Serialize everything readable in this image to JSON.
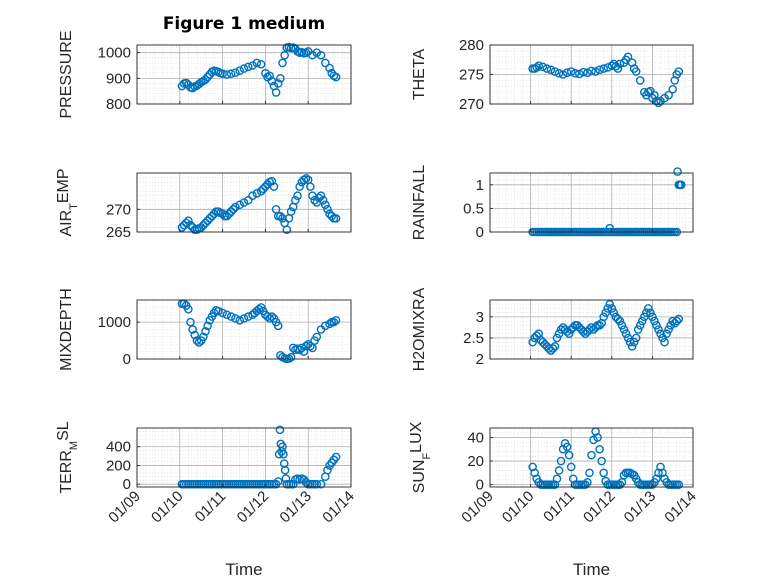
{
  "figure": {
    "title": "Figure 1 medium"
  },
  "colors": {
    "marker": "#0072BD",
    "axis": "#262626",
    "grid": "#b0b0b0",
    "minor_grid": "#d8d8d8"
  },
  "chart_data": [
    {
      "type": "scatter",
      "id": "pressure",
      "title": "Figure 1 medium",
      "ylabel": {
        "main": "PRESSURE",
        "sub": ""
      },
      "xlabel": "",
      "ylim": [
        800,
        1030
      ],
      "yticks": [
        {
          "v": 800,
          "label": "800"
        },
        {
          "v": 900,
          "label": "900"
        },
        {
          "v": 1000,
          "label": "1000"
        }
      ],
      "x": [
        10.05,
        10.1,
        10.15,
        10.2,
        10.25,
        10.3,
        10.35,
        10.4,
        10.45,
        10.5,
        10.55,
        10.6,
        10.65,
        10.7,
        10.75,
        10.8,
        10.85,
        10.9,
        10.95,
        11.0,
        11.1,
        11.2,
        11.3,
        11.4,
        11.5,
        11.6,
        11.7,
        11.8,
        11.9,
        12.0,
        12.05,
        12.1,
        12.15,
        12.2,
        12.25,
        12.3,
        12.35,
        12.4,
        12.45,
        12.5,
        12.55,
        12.6,
        12.65,
        12.7,
        12.75,
        12.8,
        12.85,
        12.9,
        12.95,
        13.0,
        13.1,
        13.2,
        13.3,
        13.4,
        13.5,
        13.55,
        13.6,
        13.65
      ],
      "y": [
        870,
        880,
        882,
        875,
        865,
        862,
        868,
        872,
        878,
        885,
        890,
        895,
        905,
        915,
        925,
        930,
        928,
        925,
        920,
        918,
        915,
        918,
        922,
        930,
        938,
        945,
        950,
        960,
        955,
        920,
        905,
        910,
        890,
        870,
        845,
        880,
        900,
        960,
        990,
        1020,
        1022,
        1018,
        1020,
        1015,
        1005,
        1000,
        1002,
        998,
        1000,
        1005,
        990,
        1000,
        990,
        960,
        940,
        920,
        910,
        905
      ],
      "grid": true,
      "minor_grid": true
    },
    {
      "type": "scatter",
      "id": "theta",
      "ylabel": {
        "main": "THETA",
        "sub": ""
      },
      "xlabel": "",
      "ylim": [
        270,
        280
      ],
      "yticks": [
        {
          "v": 270,
          "label": "270"
        },
        {
          "v": 275,
          "label": "275"
        },
        {
          "v": 280,
          "label": "280"
        }
      ],
      "x": [
        10.05,
        10.1,
        10.15,
        10.2,
        10.3,
        10.4,
        10.5,
        10.6,
        10.7,
        10.8,
        10.9,
        11.0,
        11.1,
        11.2,
        11.3,
        11.4,
        11.5,
        11.6,
        11.7,
        11.8,
        11.9,
        12.0,
        12.05,
        12.1,
        12.15,
        12.2,
        12.3,
        12.35,
        12.4,
        12.5,
        12.55,
        12.6,
        12.7,
        12.8,
        12.85,
        12.9,
        12.95,
        13.0,
        13.05,
        13.1,
        13.15,
        13.2,
        13.3,
        13.4,
        13.5,
        13.55,
        13.6,
        13.65
      ],
      "y": [
        276,
        276,
        276.2,
        276.5,
        276.3,
        276,
        275.8,
        275.5,
        275.2,
        275,
        275.3,
        275.5,
        275.2,
        275.1,
        275.4,
        275.3,
        275.6,
        275.5,
        275.8,
        276,
        276.2,
        276.5,
        276.8,
        276.4,
        276,
        276.8,
        277,
        277.5,
        278,
        277,
        276,
        275.5,
        274,
        272,
        271.5,
        272,
        272.2,
        271,
        271.5,
        270.5,
        270.2,
        270.5,
        271,
        271.5,
        272.5,
        274,
        275,
        275.5
      ],
      "grid": true,
      "minor_grid": true
    },
    {
      "type": "scatter",
      "id": "airtemp",
      "ylabel": {
        "main": "AIR",
        "sub": "T",
        "tail": "EMP"
      },
      "xlabel": "",
      "ylim": [
        265,
        278
      ],
      "yticks": [
        {
          "v": 265,
          "label": "265"
        },
        {
          "v": 270,
          "label": "270"
        }
      ],
      "x": [
        10.05,
        10.1,
        10.15,
        10.2,
        10.25,
        10.3,
        10.35,
        10.4,
        10.45,
        10.5,
        10.55,
        10.6,
        10.65,
        10.7,
        10.75,
        10.8,
        10.85,
        10.9,
        10.95,
        11.0,
        11.05,
        11.1,
        11.15,
        11.2,
        11.25,
        11.3,
        11.4,
        11.5,
        11.6,
        11.7,
        11.8,
        11.9,
        11.95,
        12.0,
        12.05,
        12.1,
        12.15,
        12.2,
        12.25,
        12.3,
        12.35,
        12.4,
        12.45,
        12.5,
        12.55,
        12.6,
        12.65,
        12.7,
        12.75,
        12.8,
        12.85,
        12.9,
        12.95,
        13.0,
        13.05,
        13.1,
        13.15,
        13.2,
        13.25,
        13.3,
        13.35,
        13.4,
        13.45,
        13.5,
        13.55,
        13.6,
        13.65
      ],
      "y": [
        266,
        266.5,
        267,
        267.5,
        266.5,
        266,
        265.5,
        265.5,
        265.8,
        266,
        266.5,
        267,
        267.5,
        268,
        268.5,
        269,
        269.5,
        269.5,
        269.2,
        269,
        268.5,
        268.5,
        269,
        269.5,
        270,
        270.5,
        271,
        271.5,
        272,
        273,
        273.5,
        274,
        274.5,
        275,
        275.5,
        276,
        276.2,
        275,
        270,
        268.5,
        268.5,
        268,
        267,
        265.5,
        268,
        269.5,
        270.5,
        272,
        273,
        275,
        276,
        276.5,
        276.8,
        276.5,
        275,
        273,
        272,
        271.5,
        272.5,
        273,
        272,
        271,
        270,
        269,
        268.5,
        268,
        268
      ],
      "grid": true,
      "minor_grid": true
    },
    {
      "type": "scatter",
      "id": "rainfall",
      "ylabel": {
        "main": "RAINFALL",
        "sub": ""
      },
      "xlabel": "",
      "ylim": [
        0,
        1.25
      ],
      "yticks": [
        {
          "v": 0,
          "label": "0"
        },
        {
          "v": 0.5,
          "label": "0.5"
        },
        {
          "v": 1,
          "label": "1"
        }
      ],
      "x": [
        10.05,
        10.1,
        10.15,
        10.2,
        10.25,
        10.3,
        10.35,
        10.4,
        10.45,
        10.5,
        10.55,
        10.6,
        10.65,
        10.7,
        10.75,
        10.8,
        10.85,
        10.9,
        10.95,
        11.0,
        11.05,
        11.1,
        11.15,
        11.2,
        11.25,
        11.3,
        11.35,
        11.4,
        11.45,
        11.5,
        11.55,
        11.6,
        11.65,
        11.7,
        11.75,
        11.8,
        11.85,
        11.9,
        11.95,
        12.0,
        12.05,
        12.1,
        12.15,
        12.2,
        12.25,
        12.3,
        12.35,
        12.4,
        12.45,
        12.5,
        12.55,
        12.6,
        12.65,
        12.7,
        12.75,
        12.8,
        12.85,
        12.9,
        12.95,
        13.0,
        13.05,
        13.1,
        13.15,
        13.2,
        13.25,
        13.3,
        13.35,
        13.4,
        13.45,
        13.5,
        13.55,
        13.6,
        13.62,
        13.65,
        13.67,
        13.69,
        13.71
      ],
      "y": [
        0,
        0,
        0,
        0,
        0,
        0,
        0,
        0,
        0,
        0,
        0,
        0,
        0,
        0,
        0,
        0,
        0,
        0,
        0,
        0,
        0,
        0,
        0,
        0,
        0,
        0,
        0,
        0,
        0,
        0,
        0,
        0,
        0,
        0,
        0,
        0,
        0,
        0,
        0,
        0,
        0,
        0,
        0,
        0,
        0,
        0,
        0,
        0,
        0,
        0,
        0,
        0,
        0,
        0,
        0,
        0,
        0,
        0,
        0,
        0,
        0,
        0,
        0,
        0,
        0,
        0,
        0,
        0,
        0,
        0,
        0,
        0,
        1.28,
        1.0,
        1.0,
        1.0,
        1.0
      ],
      "extra": [
        {
          "x": 11.95,
          "y": 0.08
        }
      ],
      "grid": true,
      "minor_grid": true
    },
    {
      "type": "scatter",
      "id": "mixdepth",
      "ylabel": {
        "main": "MIXDEPTH",
        "sub": ""
      },
      "xlabel": "",
      "ylim": [
        0,
        1600
      ],
      "yticks": [
        {
          "v": 0,
          "label": "0"
        },
        {
          "v": 1000,
          "label": "1000"
        }
      ],
      "x": [
        10.05,
        10.1,
        10.15,
        10.2,
        10.25,
        10.3,
        10.35,
        10.4,
        10.45,
        10.5,
        10.55,
        10.6,
        10.65,
        10.7,
        10.75,
        10.8,
        10.85,
        10.9,
        11.0,
        11.1,
        11.2,
        11.3,
        11.4,
        11.5,
        11.6,
        11.7,
        11.75,
        11.8,
        11.85,
        11.9,
        11.95,
        12.0,
        12.05,
        12.1,
        12.15,
        12.2,
        12.25,
        12.3,
        12.35,
        12.4,
        12.45,
        12.5,
        12.55,
        12.6,
        12.65,
        12.7,
        12.75,
        12.8,
        12.85,
        12.9,
        12.95,
        13.0,
        13.05,
        13.1,
        13.15,
        13.2,
        13.3,
        13.4,
        13.5,
        13.55,
        13.6,
        13.65
      ],
      "y": [
        1500,
        1500,
        1450,
        1350,
        1000,
        800,
        650,
        500,
        450,
        500,
        600,
        750,
        900,
        1050,
        1150,
        1250,
        1320,
        1300,
        1250,
        1200,
        1150,
        1100,
        1050,
        1100,
        1150,
        1200,
        1250,
        1300,
        1350,
        1400,
        1300,
        1200,
        1150,
        1100,
        1150,
        1100,
        1000,
        900,
        100,
        50,
        20,
        0,
        10,
        50,
        300,
        250,
        280,
        250,
        300,
        200,
        350,
        400,
        350,
        300,
        500,
        600,
        800,
        900,
        950,
        1000,
        1000,
        1050
      ],
      "grid": true,
      "minor_grid": true
    },
    {
      "type": "scatter",
      "id": "h2omixra",
      "ylabel": {
        "main": "H2OMIXRA",
        "sub": ""
      },
      "xlabel": "",
      "ylim": [
        2,
        3.4
      ],
      "yticks": [
        {
          "v": 2,
          "label": "2"
        },
        {
          "v": 2.5,
          "label": "2.5"
        },
        {
          "v": 3,
          "label": "3"
        }
      ],
      "x": [
        10.05,
        10.1,
        10.15,
        10.2,
        10.25,
        10.3,
        10.35,
        10.4,
        10.45,
        10.5,
        10.55,
        10.6,
        10.65,
        10.7,
        10.75,
        10.8,
        10.85,
        10.9,
        10.95,
        11.0,
        11.05,
        11.1,
        11.15,
        11.2,
        11.25,
        11.3,
        11.35,
        11.4,
        11.45,
        11.5,
        11.55,
        11.6,
        11.65,
        11.7,
        11.75,
        11.8,
        11.85,
        11.9,
        11.95,
        12.0,
        12.05,
        12.1,
        12.15,
        12.2,
        12.25,
        12.3,
        12.35,
        12.4,
        12.45,
        12.5,
        12.55,
        12.6,
        12.65,
        12.7,
        12.75,
        12.8,
        12.85,
        12.9,
        12.95,
        13.0,
        13.05,
        13.1,
        13.15,
        13.2,
        13.25,
        13.3,
        13.35,
        13.4,
        13.45,
        13.5,
        13.55,
        13.6,
        13.65
      ],
      "y": [
        2.4,
        2.5,
        2.55,
        2.6,
        2.45,
        2.4,
        2.35,
        2.3,
        2.25,
        2.2,
        2.25,
        2.3,
        2.5,
        2.6,
        2.7,
        2.75,
        2.7,
        2.65,
        2.6,
        2.7,
        2.75,
        2.8,
        2.8,
        2.75,
        2.7,
        2.65,
        2.6,
        2.65,
        2.7,
        2.75,
        2.7,
        2.75,
        2.8,
        2.8,
        2.85,
        3.0,
        3.1,
        3.2,
        3.3,
        3.2,
        3.1,
        3.0,
        2.95,
        2.9,
        2.8,
        2.7,
        2.6,
        2.5,
        2.4,
        2.3,
        2.4,
        2.5,
        2.7,
        2.8,
        2.9,
        3.0,
        3.1,
        3.2,
        3.1,
        3.0,
        2.9,
        2.8,
        2.7,
        2.6,
        2.5,
        2.4,
        2.6,
        2.7,
        2.8,
        2.9,
        2.85,
        2.9,
        2.95
      ],
      "grid": true,
      "minor_grid": true
    },
    {
      "type": "scatter",
      "id": "terrmsl",
      "ylabel": {
        "main": "TERR",
        "sub": "M",
        "tail": "SL"
      },
      "xlabel": "Time",
      "ylim": [
        -30,
        600
      ],
      "yticks": [
        {
          "v": 0,
          "label": "0"
        },
        {
          "v": 200,
          "label": "200"
        },
        {
          "v": 400,
          "label": "400"
        }
      ],
      "xticks_rotated": true,
      "x": [
        10.05,
        10.1,
        10.15,
        10.2,
        10.25,
        10.3,
        10.35,
        10.4,
        10.45,
        10.5,
        10.55,
        10.6,
        10.65,
        10.7,
        10.75,
        10.8,
        10.85,
        10.9,
        10.95,
        11.0,
        11.05,
        11.1,
        11.15,
        11.2,
        11.25,
        11.3,
        11.35,
        11.4,
        11.45,
        11.5,
        11.55,
        11.6,
        11.65,
        11.7,
        11.75,
        11.8,
        11.85,
        11.9,
        11.95,
        12.0,
        12.05,
        12.1,
        12.15,
        12.2,
        12.25,
        12.3,
        12.32,
        12.34,
        12.36,
        12.38,
        12.4,
        12.42,
        12.44,
        12.46,
        12.48,
        12.5,
        12.55,
        12.6,
        12.65,
        12.7,
        12.75,
        12.8,
        12.85,
        12.9,
        12.95,
        13.0,
        13.05,
        13.1,
        13.15,
        13.2,
        13.3,
        13.4,
        13.45,
        13.5,
        13.55,
        13.6,
        13.65
      ],
      "y": [
        0,
        0,
        0,
        0,
        0,
        0,
        0,
        0,
        0,
        0,
        0,
        0,
        0,
        0,
        0,
        0,
        0,
        0,
        0,
        0,
        0,
        0,
        0,
        0,
        0,
        0,
        0,
        0,
        0,
        0,
        0,
        0,
        0,
        0,
        0,
        0,
        0,
        0,
        0,
        0,
        0,
        0,
        0,
        0,
        0,
        30,
        320,
        580,
        430,
        350,
        400,
        320,
        220,
        150,
        60,
        0,
        0,
        0,
        0,
        50,
        60,
        50,
        60,
        50,
        20,
        0,
        0,
        0,
        0,
        0,
        0,
        80,
        150,
        200,
        230,
        260,
        290
      ],
      "grid": true,
      "minor_grid": true
    },
    {
      "type": "scatter",
      "id": "sunflux",
      "ylabel": {
        "main": "SUN",
        "sub": "F",
        "tail": "LUX"
      },
      "xlabel": "Time",
      "ylim": [
        -2,
        48
      ],
      "yticks": [
        {
          "v": 0,
          "label": "0"
        },
        {
          "v": 20,
          "label": "20"
        },
        {
          "v": 40,
          "label": "40"
        }
      ],
      "xticks_rotated": true,
      "x": [
        10.05,
        10.1,
        10.15,
        10.2,
        10.25,
        10.3,
        10.35,
        10.4,
        10.45,
        10.5,
        10.55,
        10.6,
        10.65,
        10.7,
        10.75,
        10.8,
        10.85,
        10.9,
        10.95,
        11.0,
        11.05,
        11.1,
        11.15,
        11.2,
        11.25,
        11.3,
        11.35,
        11.4,
        11.45,
        11.5,
        11.55,
        11.6,
        11.65,
        11.7,
        11.75,
        11.8,
        11.85,
        11.9,
        11.95,
        12.0,
        12.05,
        12.1,
        12.15,
        12.2,
        12.25,
        12.3,
        12.35,
        12.4,
        12.45,
        12.5,
        12.55,
        12.6,
        12.65,
        12.7,
        12.75,
        12.8,
        12.85,
        12.9,
        12.95,
        13.0,
        13.05,
        13.1,
        13.15,
        13.2,
        13.25,
        13.3,
        13.35,
        13.4,
        13.45,
        13.5,
        13.55,
        13.6,
        13.65
      ],
      "y": [
        15,
        10,
        5,
        2,
        0,
        0,
        0,
        0,
        0,
        0,
        0,
        0,
        5,
        12,
        20,
        30,
        35,
        32,
        25,
        15,
        5,
        0,
        0,
        0,
        0,
        0,
        0,
        2,
        10,
        25,
        38,
        45,
        40,
        30,
        20,
        10,
        3,
        0,
        0,
        0,
        0,
        0,
        0,
        0,
        2,
        8,
        10,
        10,
        10,
        9,
        8,
        5,
        2,
        0,
        0,
        0,
        0,
        0,
        0,
        0,
        2,
        5,
        10,
        15,
        10,
        5,
        2,
        0,
        0,
        0,
        0,
        0,
        0
      ],
      "grid": true,
      "minor_grid": true
    }
  ],
  "xaxis": {
    "lim": [
      9,
      14
    ],
    "ticks": [
      {
        "v": 9,
        "label": "01/09"
      },
      {
        "v": 10,
        "label": "01/10"
      },
      {
        "v": 11,
        "label": "01/11"
      },
      {
        "v": 12,
        "label": "01/12"
      },
      {
        "v": 13,
        "label": "01/13"
      },
      {
        "v": 14,
        "label": "01/14"
      }
    ]
  }
}
